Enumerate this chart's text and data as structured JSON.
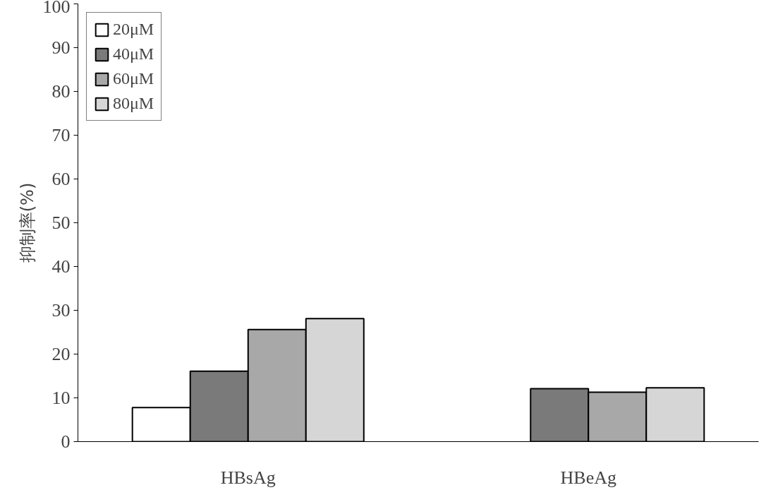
{
  "chart_data": {
    "type": "bar",
    "ylabel": "抑制率(%)",
    "categories": [
      "HBsAg",
      "HBeAg"
    ],
    "series": [
      {
        "name": "20μM",
        "color": "#ffffff",
        "values": [
          7.8,
          null
        ]
      },
      {
        "name": "40μM",
        "color": "#7a7a7a",
        "values": [
          16.1,
          12.1
        ]
      },
      {
        "name": "60μM",
        "color": "#a8a8a8",
        "values": [
          25.6,
          11.3
        ]
      },
      {
        "name": "80μM",
        "color": "#d6d6d6",
        "values": [
          28.1,
          12.3
        ]
      }
    ],
    "ylim": [
      0,
      100
    ],
    "yticks": [
      0,
      10,
      20,
      30,
      40,
      50,
      60,
      70,
      80,
      90,
      100
    ],
    "grid": false,
    "legend": "top left"
  }
}
